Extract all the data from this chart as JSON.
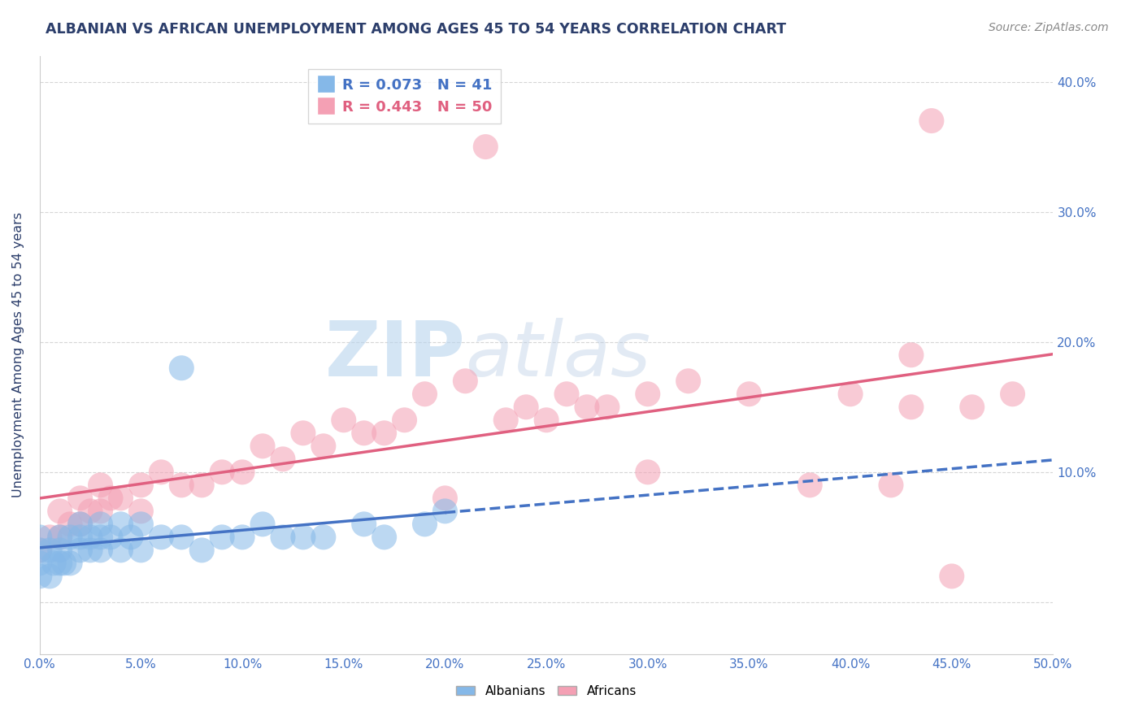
{
  "title": "ALBANIAN VS AFRICAN UNEMPLOYMENT AMONG AGES 45 TO 54 YEARS CORRELATION CHART",
  "source": "Source: ZipAtlas.com",
  "ylabel": "Unemployment Among Ages 45 to 54 years",
  "xlim": [
    0.0,
    0.5
  ],
  "ylim": [
    -0.04,
    0.42
  ],
  "albanian_R": 0.073,
  "albanian_N": 41,
  "african_R": 0.443,
  "african_N": 50,
  "albanian_color": "#85b8e8",
  "african_color": "#f4a0b4",
  "albanian_line_color": "#4472c4",
  "african_line_color": "#e06080",
  "title_color": "#2c3e6b",
  "axis_color": "#4472c4",
  "albanian_x": [
    0.0,
    0.0,
    0.0,
    0.0,
    0.005,
    0.005,
    0.007,
    0.01,
    0.01,
    0.01,
    0.012,
    0.015,
    0.015,
    0.02,
    0.02,
    0.02,
    0.025,
    0.025,
    0.03,
    0.03,
    0.03,
    0.035,
    0.04,
    0.04,
    0.045,
    0.05,
    0.05,
    0.06,
    0.07,
    0.07,
    0.08,
    0.09,
    0.1,
    0.11,
    0.12,
    0.13,
    0.14,
    0.16,
    0.17,
    0.19,
    0.2
  ],
  "albanian_y": [
    0.02,
    0.03,
    0.04,
    0.05,
    0.02,
    0.04,
    0.03,
    0.03,
    0.04,
    0.05,
    0.03,
    0.03,
    0.05,
    0.04,
    0.05,
    0.06,
    0.04,
    0.05,
    0.04,
    0.05,
    0.06,
    0.05,
    0.04,
    0.06,
    0.05,
    0.04,
    0.06,
    0.05,
    0.05,
    0.18,
    0.04,
    0.05,
    0.05,
    0.06,
    0.05,
    0.05,
    0.05,
    0.06,
    0.05,
    0.06,
    0.07
  ],
  "african_x": [
    0.0,
    0.005,
    0.01,
    0.01,
    0.015,
    0.02,
    0.02,
    0.025,
    0.03,
    0.03,
    0.035,
    0.04,
    0.05,
    0.05,
    0.06,
    0.07,
    0.08,
    0.09,
    0.1,
    0.11,
    0.12,
    0.13,
    0.14,
    0.15,
    0.16,
    0.17,
    0.18,
    0.19,
    0.2,
    0.21,
    0.22,
    0.23,
    0.24,
    0.25,
    0.26,
    0.27,
    0.28,
    0.3,
    0.3,
    0.32,
    0.35,
    0.38,
    0.4,
    0.42,
    0.43,
    0.43,
    0.44,
    0.45,
    0.46,
    0.48
  ],
  "african_y": [
    0.04,
    0.05,
    0.05,
    0.07,
    0.06,
    0.06,
    0.08,
    0.07,
    0.07,
    0.09,
    0.08,
    0.08,
    0.07,
    0.09,
    0.1,
    0.09,
    0.09,
    0.1,
    0.1,
    0.12,
    0.11,
    0.13,
    0.12,
    0.14,
    0.13,
    0.13,
    0.14,
    0.16,
    0.08,
    0.17,
    0.35,
    0.14,
    0.15,
    0.14,
    0.16,
    0.15,
    0.15,
    0.16,
    0.1,
    0.17,
    0.16,
    0.09,
    0.16,
    0.09,
    0.19,
    0.15,
    0.37,
    0.02,
    0.15,
    0.16
  ]
}
